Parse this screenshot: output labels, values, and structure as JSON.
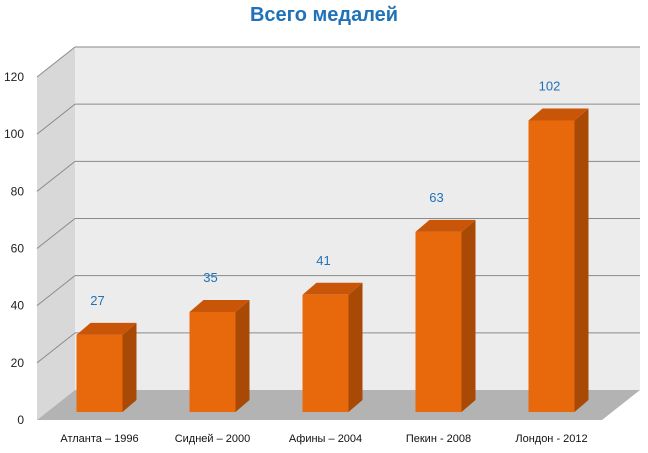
{
  "chart_data": {
    "type": "bar",
    "title": "Всего медалей",
    "categories": [
      "Атланта – 1996",
      "Сидней – 2000",
      "Афины – 2004",
      "Пекин -  2008",
      "Лондон - 2012"
    ],
    "values": [
      27,
      35,
      41,
      63,
      102
    ],
    "ylim": [
      0,
      120
    ],
    "yticks": [
      0,
      20,
      40,
      60,
      80,
      100,
      120
    ],
    "xlabel": "",
    "ylabel": "",
    "grid": true,
    "legend": "none",
    "style": "3d-column",
    "colors": {
      "bar_front": "#e8680c",
      "bar_side": "#a84a06",
      "bar_top": "#c95508",
      "back_wall": "#ececec",
      "side_wall": "#d8d8d8",
      "floor": "#b3b3b3",
      "data_label": "#1f72b8",
      "title": "#1f72b8"
    }
  }
}
